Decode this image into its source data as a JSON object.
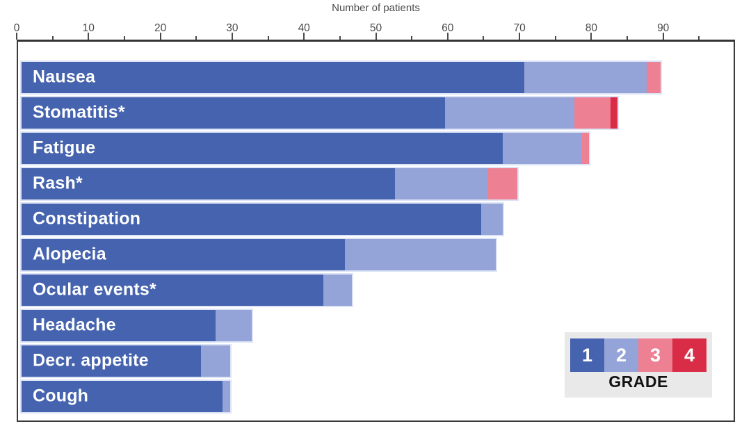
{
  "chart_data": {
    "type": "bar",
    "orientation": "horizontal",
    "axis_title": "Number of patients",
    "axis": {
      "min": 0,
      "max": 100,
      "major_tick_step": 10,
      "minor_tick_step": 5,
      "tick_labels": [
        "0",
        "10",
        "20",
        "30",
        "40",
        "50",
        "60",
        "70",
        "80",
        "90"
      ]
    },
    "categories": [
      "Nausea",
      "Stomatitis*",
      "Fatigue",
      "Rash*",
      "Constipation",
      "Alopecia",
      "Ocular events*",
      "Headache",
      "Decr. appetite",
      "Cough"
    ],
    "series": [
      {
        "name": "Grade 1",
        "color": "#4563ae",
        "values": [
          70,
          59,
          67,
          52,
          64,
          45,
          42,
          27,
          25,
          28
        ]
      },
      {
        "name": "Grade 2",
        "color": "#94a3d8",
        "values": [
          17,
          18,
          11,
          13,
          3,
          21,
          4,
          5,
          4,
          1
        ]
      },
      {
        "name": "Grade 3",
        "color": "#ee8094",
        "values": [
          2,
          5,
          1,
          4,
          0,
          0,
          0,
          0,
          0,
          0
        ]
      },
      {
        "name": "Grade 4",
        "color": "#d92c47",
        "values": [
          0,
          1,
          0,
          0,
          0,
          0,
          0,
          0,
          0,
          0
        ]
      }
    ],
    "legend": {
      "title": "GRADE",
      "position": "bottom-right",
      "entries": [
        {
          "label": "1",
          "color": "#4563ae"
        },
        {
          "label": "2",
          "color": "#94a3d8"
        },
        {
          "label": "3",
          "color": "#ee8094"
        },
        {
          "label": "4",
          "color": "#d92c47"
        }
      ]
    },
    "grid": false,
    "colors": {
      "background": "#ffffff",
      "axis_line": "#3a3a3a",
      "tick_text": "#4a4a4a",
      "bar_outline": "#dce3f5",
      "legend_background": "#e9e9e9",
      "legend_title_text": "#111111",
      "bar_label_text": "#ffffff"
    }
  }
}
